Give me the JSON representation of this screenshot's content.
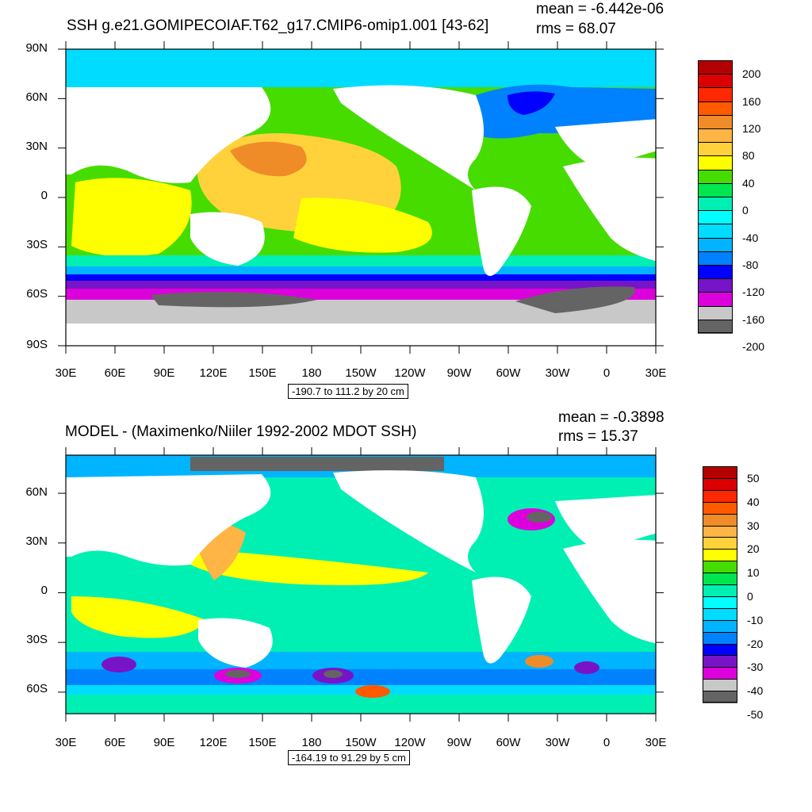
{
  "panels": [
    {
      "title": "SSH g.e21.GOMIPECOIAF.T62_g17.CMIP6-omip1.001 [43-62]",
      "mean": "mean = -6.442e-06",
      "rms": "rms = 68.07",
      "lat_labels": [
        "90N",
        "60N",
        "30N",
        "0",
        "30S",
        "60S",
        "90S"
      ],
      "lat_values": [
        90,
        60,
        30,
        0,
        -30,
        -60,
        -90
      ],
      "lat_range": [
        -90,
        90
      ],
      "lon_labels": [
        "30E",
        "60E",
        "90E",
        "120E",
        "150E",
        "180",
        "150W",
        "120W",
        "90W",
        "60W",
        "30W",
        "0",
        "30E"
      ],
      "range_label": "-190.7 to 111.2 by 20 cm",
      "colorbar_labels": [
        "200",
        "160",
        "120",
        "80",
        "40",
        "0",
        "-40",
        "-80",
        "-120",
        "-160",
        "-200"
      ],
      "colorbar_colors": [
        "#b40000",
        "#dc0000",
        "#ff2800",
        "#ff5a00",
        "#f08c28",
        "#ffb446",
        "#ffd23c",
        "#ffff00",
        "#46dc00",
        "#00e650",
        "#00f0b4",
        "#00ffff",
        "#00dcff",
        "#00b4ff",
        "#0082ff",
        "#0000ff",
        "#7814c8",
        "#dc00dc",
        "#c8c8c8",
        "#646464"
      ]
    },
    {
      "title": "MODEL - (Maximenko/Niiler 1992-2002 MDOT SSH)",
      "mean": "mean = -0.3898",
      "rms": "rms = 15.37",
      "lat_labels": [
        "60N",
        "30N",
        "0",
        "30S",
        "60S"
      ],
      "lat_values": [
        60,
        30,
        0,
        -30,
        -60
      ],
      "lat_range": [
        -73,
        83
      ],
      "lon_labels": [
        "30E",
        "60E",
        "90E",
        "120E",
        "150E",
        "180",
        "150W",
        "120W",
        "90W",
        "60W",
        "30W",
        "0",
        "30E"
      ],
      "range_label": "-164.19 to 91.29 by 5 cm",
      "colorbar_labels": [
        "50",
        "40",
        "30",
        "20",
        "10",
        "0",
        "-10",
        "-20",
        "-30",
        "-40",
        "-50"
      ],
      "colorbar_colors": [
        "#b40000",
        "#dc0000",
        "#ff2800",
        "#ff5a00",
        "#f08c28",
        "#ffb446",
        "#ffd23c",
        "#ffff00",
        "#46dc00",
        "#00e650",
        "#00f0b4",
        "#00ffff",
        "#00dcff",
        "#00b4ff",
        "#0082ff",
        "#0000ff",
        "#7814c8",
        "#dc00dc",
        "#c8c8c8",
        "#646464"
      ]
    }
  ],
  "palette": {
    "land": "#ffffff",
    "ice": "#c8c8c8",
    "dark": "#646464",
    "axis": "#000000"
  }
}
